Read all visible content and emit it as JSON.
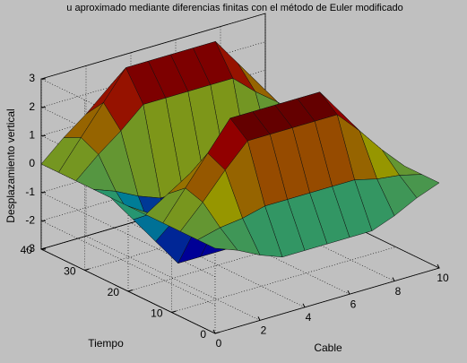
{
  "chart_data": {
    "type": "surface",
    "title": "u aproximado mediante diferencias finitas con el método de Euler modificado",
    "xlabel": "Cable",
    "ylabel": "Tiempo",
    "zlabel": "Desplazamiento vertical",
    "x": [
      0,
      1,
      2,
      3,
      4,
      5,
      6,
      7,
      8,
      9,
      10
    ],
    "y": [
      0,
      4,
      8,
      12,
      16,
      20,
      24,
      28,
      32,
      36,
      40
    ],
    "z": [
      [
        0,
        -0.3,
        -0.7,
        -1,
        -1,
        -1,
        -1,
        -1,
        -0.7,
        -0.3,
        0
      ],
      [
        0,
        0.2,
        0.3,
        0.5,
        0.5,
        0.5,
        0.5,
        0.5,
        0.3,
        0.2,
        0
      ],
      [
        0,
        0.8,
        1.7,
        2.5,
        2.5,
        2.5,
        2.5,
        2.5,
        1.7,
        0.8,
        0
      ],
      [
        0,
        1,
        2,
        3,
        3,
        3,
        3,
        3,
        2,
        1,
        0
      ],
      [
        0,
        0.5,
        1,
        1.5,
        1.5,
        1.5,
        1.5,
        1.5,
        1,
        0.5,
        0
      ],
      [
        0,
        -0.5,
        -1,
        -1.5,
        -1.5,
        -1.5,
        -1.5,
        -1.5,
        -1,
        -0.5,
        0
      ],
      [
        0,
        -1,
        -2,
        -3,
        -3,
        -3,
        -3,
        -3,
        -2,
        -1,
        0
      ],
      [
        0,
        -0.3,
        -0.7,
        -1,
        -1,
        -1,
        -1,
        -1,
        -0.7,
        -0.3,
        0
      ],
      [
        0,
        0.7,
        1.3,
        2,
        2,
        2,
        2,
        2,
        1.3,
        0.7,
        0
      ],
      [
        0,
        1,
        2,
        3,
        3,
        3,
        3,
        3,
        2,
        1,
        0
      ],
      [
        0,
        0.7,
        1.3,
        2,
        2,
        2,
        2,
        2,
        1.3,
        0.7,
        0
      ]
    ],
    "xlim": [
      0,
      10
    ],
    "xticks": [
      0,
      2,
      4,
      6,
      8,
      10
    ],
    "ylim": [
      0,
      40
    ],
    "yticks": [
      0,
      10,
      20,
      30,
      40
    ],
    "zlim": [
      -3,
      3
    ],
    "zticks": [
      -3,
      -2,
      -1,
      0,
      1,
      2,
      3
    ],
    "grid": true,
    "colormap": "jet"
  }
}
